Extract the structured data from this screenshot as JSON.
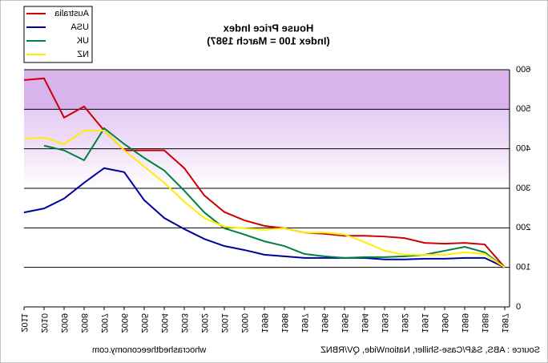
{
  "chart_data": {
    "type": "line",
    "title": "House Price Index",
    "subtitle": "(Index 100 = March 1987)",
    "source": "Source : ABS, S&P/Case-Shiller, NationWide, QV/RBNZ",
    "website": "whocrashedtheeconomy.com",
    "x": [
      1987,
      1988,
      1989,
      1990,
      1991,
      1992,
      1993,
      1994,
      1995,
      1996,
      1997,
      1998,
      1999,
      2000,
      2001,
      2002,
      2003,
      2004,
      2005,
      2006,
      2007,
      2008,
      2009,
      2010,
      2011
    ],
    "xlim": [
      1987,
      2011
    ],
    "xticks": [
      1987,
      1988,
      1989,
      1990,
      1991,
      1992,
      1993,
      1994,
      1995,
      1996,
      1997,
      1998,
      1999,
      2000,
      2001,
      2002,
      2003,
      2004,
      2005,
      2006,
      2007,
      2008,
      2009,
      2010,
      2011
    ],
    "ylim": [
      0,
      600
    ],
    "yticks": [
      0,
      100,
      200,
      300,
      400,
      500,
      600
    ],
    "grid": true,
    "legend": "top-right",
    "series": [
      {
        "name": "Australia",
        "color": "#cc0000",
        "values": [
          100,
          158,
          162,
          160,
          162,
          174,
          178,
          180,
          180,
          185,
          188,
          199,
          205,
          219,
          240,
          282,
          351,
          396,
          396,
          396,
          446,
          507,
          479,
          578,
          574
        ]
      },
      {
        "name": "USA",
        "color": "#0000a0",
        "values": [
          100,
          124,
          124,
          122,
          122,
          120,
          120,
          124,
          124,
          124,
          124,
          128,
          132,
          144,
          154,
          172,
          197,
          225,
          270,
          341,
          351,
          314,
          274,
          249,
          239
        ]
      },
      {
        "name": "UK",
        "color": "#008040",
        "values": [
          100,
          138,
          152,
          142,
          132,
          128,
          126,
          126,
          124,
          128,
          134,
          154,
          166,
          183,
          199,
          239,
          294,
          345,
          377,
          412,
          452,
          371,
          396,
          408,
          null
        ]
      },
      {
        "name": "NZ",
        "color": "#ffee00",
        "values": [
          100,
          134,
          138,
          132,
          132,
          132,
          142,
          164,
          183,
          188,
          188,
          199,
          195,
          199,
          203,
          225,
          266,
          314,
          355,
          396,
          446,
          446,
          412,
          428,
          426
        ]
      }
    ]
  }
}
